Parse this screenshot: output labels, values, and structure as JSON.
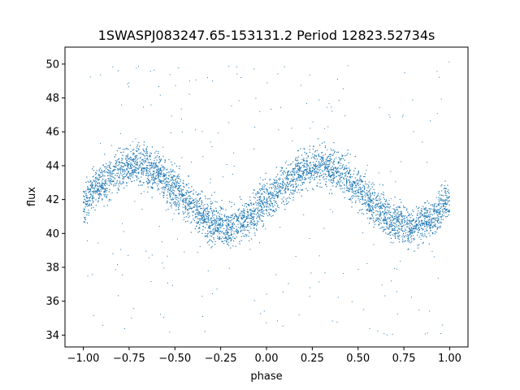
{
  "chart_data": {
    "type": "scatter",
    "title": "1SWASPJ083247.65-153131.2 Period 12823.52734s",
    "xlabel": "phase",
    "ylabel": "flux",
    "xlim": [
      -1.1,
      1.1
    ],
    "ylim": [
      33.3,
      51.0
    ],
    "xticks": [
      -1.0,
      -0.75,
      -0.5,
      -0.25,
      0.0,
      0.25,
      0.5,
      0.75,
      1.0
    ],
    "xtick_labels": [
      "−1.00",
      "−0.75",
      "−0.50",
      "−0.25",
      "0.00",
      "0.25",
      "0.50",
      "0.75",
      "1.00"
    ],
    "yticks": [
      34,
      36,
      38,
      40,
      42,
      44,
      46,
      48,
      50
    ],
    "ytick_labels": [
      "34",
      "36",
      "38",
      "40",
      "42",
      "44",
      "46",
      "48",
      "50"
    ],
    "grid": false,
    "marker_color": "#1f77b4",
    "series": [
      {
        "x": [
          -1.0,
          -0.9,
          -0.8,
          -0.7,
          -0.6,
          -0.5,
          -0.4,
          -0.3,
          -0.2,
          -0.1,
          0.0,
          0.1,
          0.2,
          0.3,
          0.4,
          0.5,
          0.6,
          0.7,
          0.8,
          0.9,
          1.0
        ],
        "y": [
          41.9,
          42.9,
          43.8,
          44.0,
          43.6,
          42.7,
          41.5,
          40.7,
          40.4,
          40.9,
          41.9,
          42.9,
          43.8,
          44.0,
          43.6,
          42.7,
          41.5,
          40.7,
          40.4,
          40.9,
          41.9
        ],
        "band_halfwidth": 1.3,
        "outlier_range": [
          34,
          50.3
        ]
      }
    ]
  }
}
